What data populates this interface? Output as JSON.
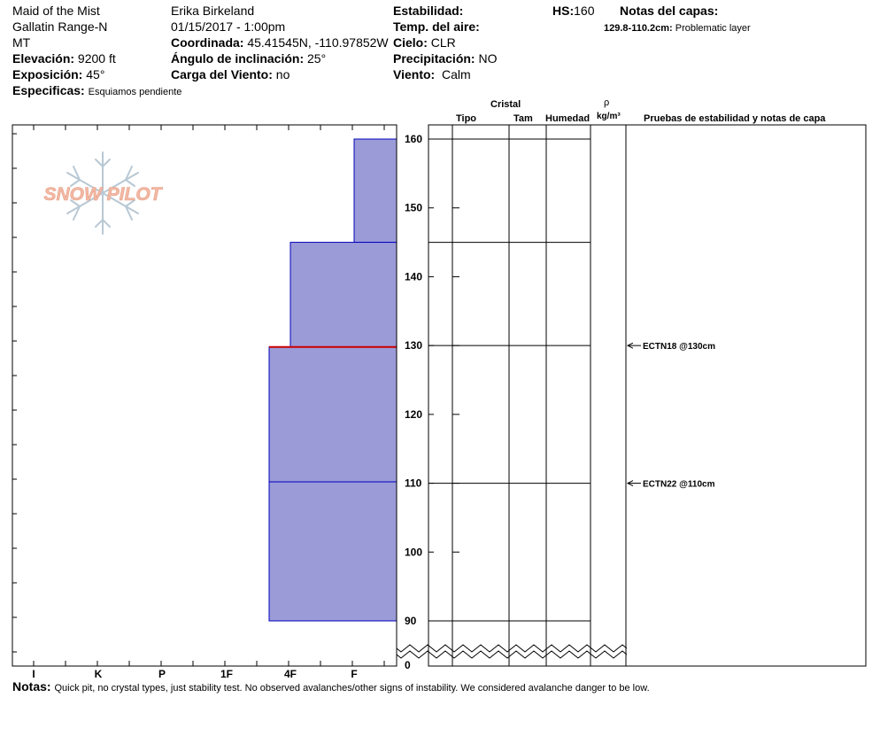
{
  "header": {
    "location": "Maid of the Mist",
    "range": "Gallatin Range-N",
    "state": "MT",
    "elevation_label": "Elevación:",
    "elevation_value": "9200 ft",
    "aspect_label": "Exposición:",
    "aspect_value": "45°",
    "specifics_label": "Especificas:",
    "specifics_value": "Esquiamos pendiente",
    "observer": "Erika Birkeland",
    "datetime": "01/15/2017 - 1:00pm",
    "coord_label": "Coordinada:",
    "coord_value": "45.41545N, -110.97852W",
    "slope_label": "Ángulo de inclinación:",
    "slope_value": "25°",
    "wind_load_label": "Carga del Viento:",
    "wind_load_value": "no",
    "stability_label": "Estabilidad:",
    "air_temp_label": "Temp. del aire:",
    "sky_label": "Cielo:",
    "sky_value": "CLR",
    "precip_label": "Precipitación:",
    "precip_value": "NO",
    "wind_label": "Viento:",
    "wind_value": "Calm",
    "hs_label": "HS:",
    "hs_value": "160",
    "layer_notes_label": "Notas del capas:",
    "layer_note_range": "129.8-110.2cm:",
    "layer_note_text": "Problematic layer"
  },
  "columns": {
    "crystal": "Cristal",
    "type": "Tipo",
    "size": "Tam",
    "moisture": "Humedad",
    "rho": "ρ",
    "density_unit": "kg/m³",
    "tests": "Pruebas de estabilidad y notas de capa"
  },
  "logo": {
    "text": "SNOW PILOT"
  },
  "notes": {
    "label": "Notas:",
    "text": "Quick pit, no crystal types, just stability test. No observed avalanches/other signs of instability. We considered avalanche danger to be low."
  },
  "colors": {
    "layer_fill": "#9b9bd8",
    "layer_stroke": "#0000bb",
    "weak_layer": "#cc0000",
    "logo_text": "#f2b9a4",
    "logo_flake": "#b8c8d4"
  },
  "chart_data": {
    "type": "snow-profile",
    "y_axis": {
      "min": 90,
      "max": 160,
      "ticks": [
        90,
        100,
        110,
        120,
        130,
        140,
        150,
        160
      ],
      "break_label": "0",
      "unit": "cm"
    },
    "hardness_scale": [
      "I",
      "K",
      "P",
      "1F",
      "4F",
      "F"
    ],
    "layers": [
      {
        "top": 160,
        "bottom": 145,
        "hardness": "F"
      },
      {
        "top": 145,
        "bottom": 129.8,
        "hardness": "4F"
      },
      {
        "top": 129.8,
        "bottom": 110.2,
        "hardness": "1F-4F"
      },
      {
        "top": 110.2,
        "bottom": 90,
        "hardness": "1F-4F"
      }
    ],
    "weak_layer_cm": 129.8,
    "grid_lines_cm": [
      160,
      145,
      130,
      110,
      90
    ],
    "stability_tests": [
      {
        "depth_cm": 130,
        "label": "ECTN18 @130cm"
      },
      {
        "depth_cm": 110,
        "label": "ECTN22 @110cm"
      }
    ]
  }
}
